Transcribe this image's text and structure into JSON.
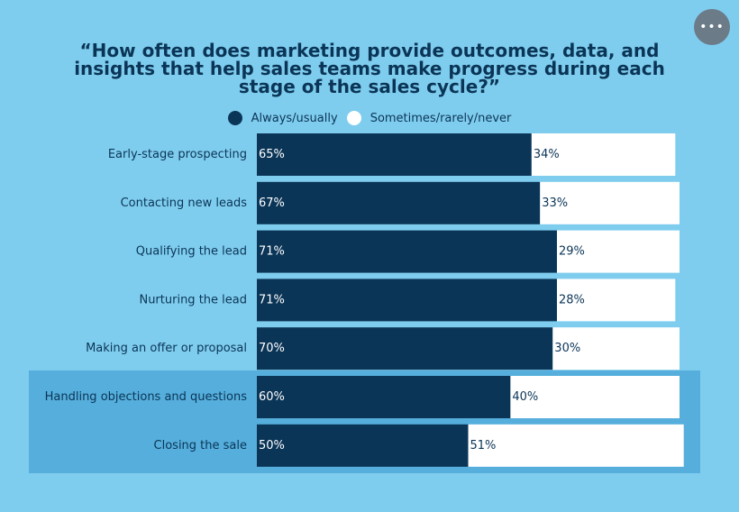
{
  "menu": {
    "icon": "more-horizontal-icon",
    "label": "•••"
  },
  "chart_data": {
    "type": "bar",
    "orientation": "horizontal",
    "stacked": true,
    "title": "“How often does marketing provide outcomes, data, and insights that help sales teams make progress during each stage of the sales cycle?”",
    "categories": [
      "Early-stage prospecting",
      "Contacting new leads",
      "Qualifying the lead",
      "Nurturing the lead",
      "Making an offer or proposal",
      "Handling objections and questions",
      "Closing the sale"
    ],
    "series": [
      {
        "name": "Always/usually",
        "color": "#0b3557",
        "label_color": "#ffffff",
        "values": [
          65,
          67,
          71,
          71,
          70,
          60,
          50
        ]
      },
      {
        "name": "Sometimes/rarely/never",
        "color": "#ffffff",
        "label_color": "#0b3557",
        "values": [
          34,
          33,
          29,
          28,
          30,
          40,
          51
        ]
      }
    ],
    "value_suffix": "%",
    "highlighted_categories": [
      "Handling objections and questions",
      "Closing the sale"
    ],
    "legend_position": "top",
    "grid": false,
    "xlim": [
      0,
      100
    ]
  }
}
